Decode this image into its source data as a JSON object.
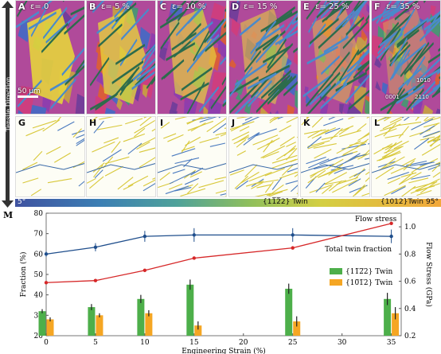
{
  "axis_label_side": "Tensile Direction",
  "panels_top": [
    {
      "letter": "A",
      "strain": "ε= 0"
    },
    {
      "letter": "B",
      "strain": "ε= 5 %"
    },
    {
      "letter": "C",
      "strain": "ε= 10 %"
    },
    {
      "letter": "D",
      "strain": "ε= 15 %"
    },
    {
      "letter": "E",
      "strain": "ε= 25 %"
    },
    {
      "letter": "F",
      "strain": "ε= 35 %"
    }
  ],
  "panels_bottom": [
    "G",
    "H",
    "I",
    "J",
    "K",
    "L"
  ],
  "scale_bar": "50 μm",
  "ipf_labels": {
    "a": "1010",
    "b": "0001",
    "c": "2110"
  },
  "colorbar": {
    "left": "5°",
    "right": "95°",
    "label1": "{11̅2̅2} Twin",
    "label2": "{1012}Twin"
  },
  "chart_data": {
    "type": "line",
    "panel_label": "M",
    "x": [
      0,
      5,
      10,
      15,
      25,
      35
    ],
    "xlabel": "Engineering Strain (%)",
    "ylabel": "Fraction (%)",
    "ylabel_right": "Flow Stress (GPa)",
    "xlim": [
      0,
      36
    ],
    "xticks": [
      0,
      5,
      10,
      15,
      20,
      25,
      30,
      35
    ],
    "ylim": [
      20,
      80
    ],
    "yticks": [
      20,
      30,
      40,
      50,
      60,
      70,
      80
    ],
    "ylim_right": [
      0.2,
      1.1
    ],
    "yticks_right": [
      0.2,
      0.4,
      0.6,
      0.8,
      1.0
    ],
    "series": [
      {
        "name": "Flow stress",
        "kind": "line",
        "axis": "right",
        "color": "#1f4e8c",
        "x": [
          0,
          5,
          10,
          15,
          25,
          35
        ],
        "values": [
          0.8,
          0.85,
          0.93,
          0.94,
          0.94,
          0.93
        ],
        "err": [
          0.02,
          0.03,
          0.04,
          0.05,
          0.05,
          0.05
        ]
      },
      {
        "name": "Total twin fraction",
        "kind": "line",
        "axis": "left",
        "color": "#d62728",
        "x": [
          0,
          5,
          10,
          15,
          25,
          35
        ],
        "values": [
          46,
          47,
          52,
          58,
          63,
          75
        ]
      },
      {
        "name": "{11̅2̅2} Twin",
        "kind": "bar",
        "axis": "left",
        "color": "#4daf4a",
        "x": [
          0,
          5,
          10,
          15,
          25,
          35
        ],
        "values": [
          32,
          34,
          38,
          45,
          43,
          38
        ],
        "err": [
          1,
          1.5,
          2,
          2.5,
          2.5,
          3
        ]
      },
      {
        "name": "{10̅1̅2} Twin",
        "kind": "bar",
        "axis": "left",
        "color": "#f5a623",
        "x": [
          0,
          5,
          10,
          15,
          25,
          35
        ],
        "values": [
          28,
          30,
          31,
          25,
          27,
          31
        ],
        "err": [
          1,
          1,
          1.5,
          2,
          2.5,
          3
        ]
      }
    ],
    "legend": "right",
    "annotations": [
      "Flow stress",
      "Total twin fraction"
    ]
  }
}
